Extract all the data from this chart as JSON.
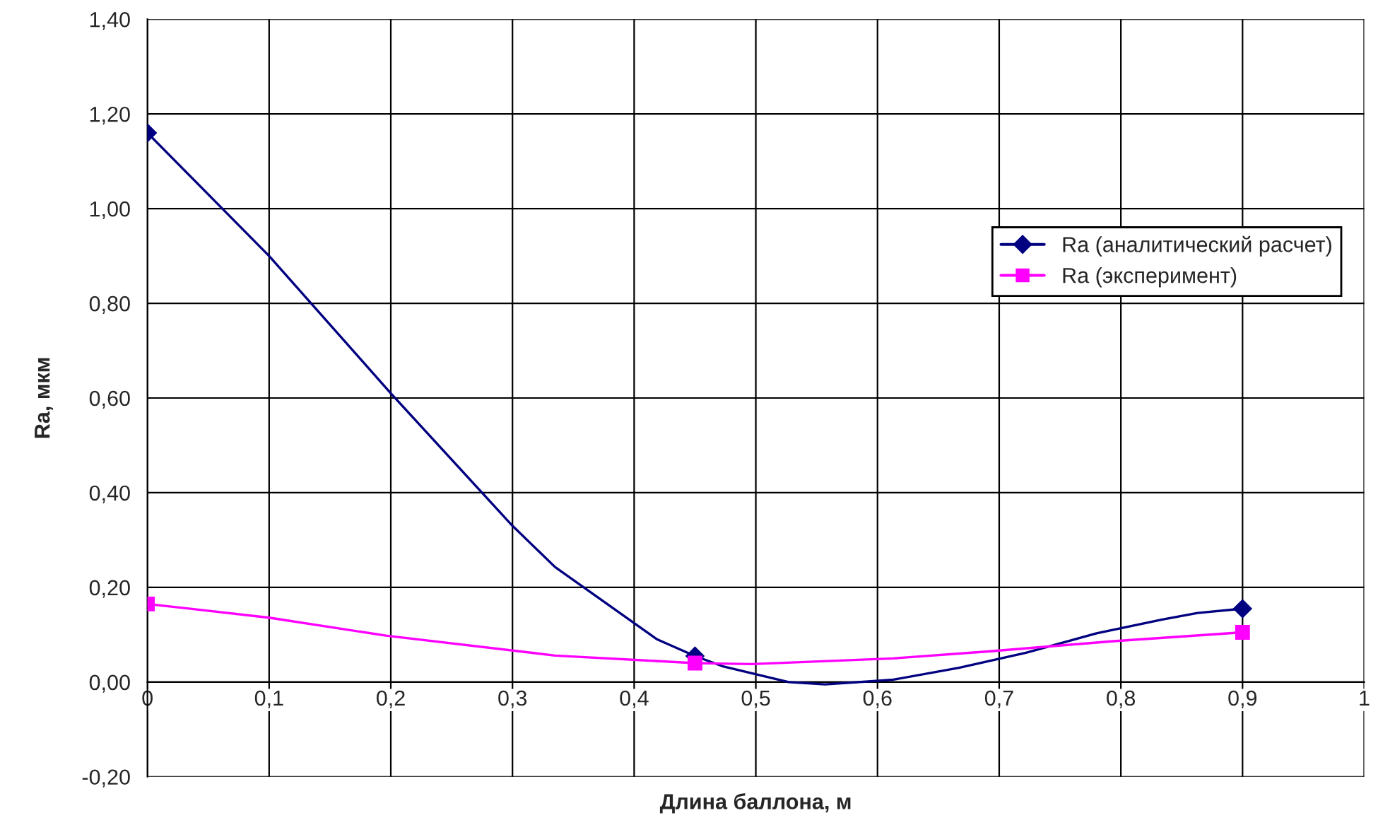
{
  "chart_data": {
    "type": "line",
    "xlabel": "Длина баллона, м",
    "ylabel": "Ra, мкм",
    "series": [
      {
        "name": "Ra (аналитический расчет)",
        "color": "#000080",
        "x": [
          0,
          0.1,
          0.2,
          0.3,
          0.335,
          0.419,
          0.45,
          0.473,
          0.527,
          0.557,
          0.613,
          0.667,
          0.722,
          0.78,
          0.834,
          0.863,
          0.9
        ],
        "values": [
          1.16,
          0.9,
          0.61,
          0.33,
          0.243,
          0.09,
          0.055,
          0.033,
          0.0,
          -0.005,
          0.005,
          0.03,
          0.062,
          0.103,
          0.132,
          0.146,
          0.155
        ]
      },
      {
        "type": "scatter",
        "color": "#000080",
        "marker": "diamond",
        "x": [
          0,
          0.45,
          0.9
        ],
        "values": [
          1.16,
          0.055,
          0.155
        ]
      },
      {
        "name": "Ra (эксперимент)",
        "color": "#ff00ff",
        "x": [
          0,
          0.1,
          0.196,
          0.335,
          0.45,
          0.497,
          0.613,
          0.693,
          0.792,
          0.9
        ],
        "values": [
          0.165,
          0.136,
          0.098,
          0.056,
          0.04,
          0.038,
          0.05,
          0.065,
          0.086,
          0.105
        ]
      },
      {
        "type": "scatter",
        "color": "#ff00ff",
        "marker": "square",
        "x": [
          0,
          0.45,
          0.9
        ],
        "values": [
          0.165,
          0.04,
          0.105
        ]
      }
    ],
    "xlim": [
      0,
      1
    ],
    "xticks": [
      {
        "value": 0,
        "label": "0"
      },
      {
        "value": 0.1,
        "label": "0,1"
      },
      {
        "value": 0.2,
        "label": "0,2"
      },
      {
        "value": 0.3,
        "label": "0,3"
      },
      {
        "value": 0.4,
        "label": "0,4"
      },
      {
        "value": 0.5,
        "label": "0,5"
      },
      {
        "value": 0.6,
        "label": "0,6"
      },
      {
        "value": 0.7,
        "label": "0,7"
      },
      {
        "value": 0.8,
        "label": "0,8"
      },
      {
        "value": 0.9,
        "label": "0,9"
      },
      {
        "value": 1,
        "label": "1"
      }
    ],
    "ylim": [
      -0.2,
      1.4
    ],
    "yticks": [
      {
        "value": -0.2,
        "label": "-0,20"
      },
      {
        "value": 0,
        "label": "0,00"
      },
      {
        "value": 0.2,
        "label": "0,20"
      },
      {
        "value": 0.4,
        "label": "0,40"
      },
      {
        "value": 0.6,
        "label": "0,60"
      },
      {
        "value": 0.8,
        "label": "0,80"
      },
      {
        "value": 1.0,
        "label": "1,00"
      },
      {
        "value": 1.2,
        "label": "1,20"
      },
      {
        "value": 1.4,
        "label": "1,40"
      }
    ],
    "grid": true,
    "legend": "right",
    "line_style": "solid"
  }
}
